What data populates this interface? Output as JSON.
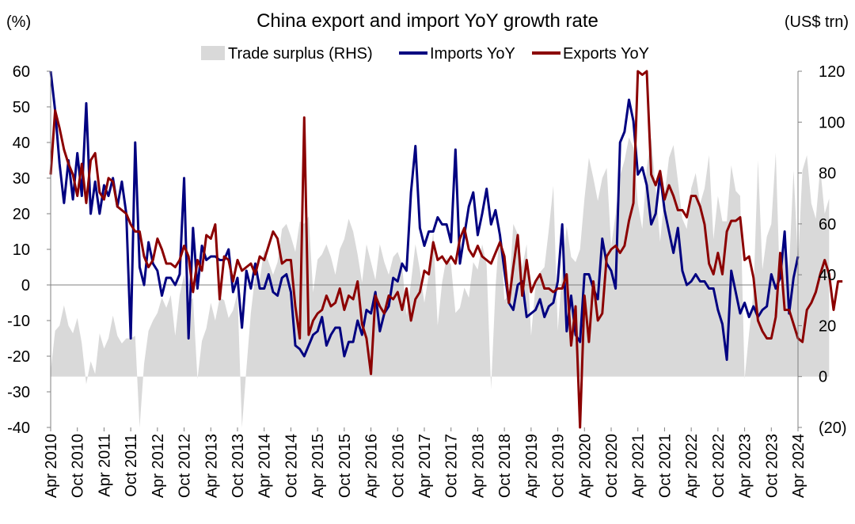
{
  "chart_data": {
    "type": "line",
    "title": "China export and import YoY growth rate",
    "left_axis_unit": "(%)",
    "right_axis_unit": "(US$ trn)",
    "ylim": [
      -40,
      60
    ],
    "y_ticks": [
      "60",
      "50",
      "40",
      "30",
      "20",
      "10",
      "0",
      "-10",
      "-20",
      "-30",
      "-40"
    ],
    "y2lim": [
      -20,
      120
    ],
    "y2_ticks": [
      "120",
      "100",
      "80",
      "60",
      "40",
      "20",
      "0",
      "(20)"
    ],
    "y2_negative_color": "#ff0000",
    "x_range": [
      "2010-04",
      "2024-04"
    ],
    "x_tick_labels": [
      "Apr 2010",
      "Oct 2010",
      "Apr 2011",
      "Oct 2011",
      "Apr 2012",
      "Oct 2012",
      "Apr 2013",
      "Oct 2013",
      "Apr 2014",
      "Oct 2014",
      "Apr 2015",
      "Oct 2015",
      "Apr 2016",
      "Oct 2016",
      "Apr 2017",
      "Oct 2017",
      "Apr 2018",
      "Oct 2018",
      "Apr 2019",
      "Oct 2019",
      "Apr 2020",
      "Oct 2020",
      "Apr 2021",
      "Oct 2021",
      "Apr 2022",
      "Oct 2022",
      "Apr 2023",
      "Oct 2023",
      "Apr 2024"
    ],
    "legend": {
      "placement": "top-center"
    },
    "series": [
      {
        "name": "Trade surplus (RHS)",
        "kind": "area",
        "axis": "right",
        "color": "#d9d9d9",
        "start": "2010-04",
        "values": [
          2,
          18,
          20,
          28,
          20,
          17,
          23,
          13,
          -3,
          6,
          1,
          17,
          11,
          15,
          24,
          16,
          13,
          15,
          15,
          16,
          -30,
          5,
          18,
          22,
          25,
          31,
          27,
          32,
          16,
          32,
          40,
          29,
          31,
          -1,
          14,
          19,
          29,
          22,
          31,
          30,
          23,
          26,
          33,
          -24,
          3,
          25,
          40,
          38,
          50,
          45,
          40,
          45,
          58,
          60,
          55,
          49,
          61,
          60,
          63,
          33,
          46,
          48,
          52,
          47,
          40,
          50,
          54,
          62,
          57,
          48,
          37,
          52,
          45,
          38,
          52,
          45,
          40,
          47,
          49,
          44,
          24,
          37,
          52,
          42,
          29,
          40,
          57,
          20,
          37,
          47,
          44,
          25,
          27,
          35,
          31,
          45,
          42,
          52,
          44,
          -5,
          35,
          60,
          30,
          32,
          60,
          56,
          43,
          52,
          16,
          36,
          41,
          43,
          58,
          75,
          18,
          42,
          59,
          47,
          45,
          50,
          70,
          86,
          78,
          69,
          78,
          82,
          51,
          64,
          79,
          85,
          94,
          90,
          68,
          58,
          82,
          94,
          74,
          53,
          71,
          86,
          91,
          77,
          62,
          58,
          74,
          80,
          68,
          74,
          87,
          54,
          71,
          61,
          61,
          83,
          73,
          71,
          -1,
          17,
          33,
          85,
          42,
          55,
          60,
          88,
          32,
          54,
          43,
          81,
          45,
          81,
          87,
          68,
          62,
          82,
          64,
          70
        ]
      },
      {
        "name": "Imports YoY",
        "kind": "line",
        "axis": "left",
        "color": "#000080",
        "start": "2010-04",
        "values": [
          60,
          49,
          34,
          23,
          35,
          24,
          37,
          25,
          51,
          20,
          29,
          20,
          28,
          25,
          30,
          22,
          29,
          20,
          -15,
          40,
          5,
          0,
          12,
          6,
          4,
          -3,
          2,
          2,
          0,
          3,
          30,
          -15,
          16,
          -1,
          11,
          7,
          8,
          8,
          7,
          7,
          10,
          -2,
          2,
          -12,
          4,
          -1,
          6,
          -1,
          -1,
          3,
          -2,
          -3,
          2,
          3,
          -2,
          -17,
          -18,
          -20,
          -17,
          -14,
          -13,
          -9,
          -17,
          -14,
          -12,
          -12,
          -20,
          -16,
          -16,
          -10,
          -14,
          -7,
          -8,
          -2,
          -13,
          -8,
          -6,
          2,
          1,
          6,
          4,
          26,
          39,
          16,
          11,
          15,
          15,
          19,
          17,
          17,
          12,
          38,
          6,
          14,
          22,
          26,
          14,
          20,
          27,
          17,
          21,
          14,
          4,
          -5,
          -7,
          0,
          1,
          -9,
          -8,
          -7,
          -4,
          -9,
          -6,
          -5,
          1,
          17,
          -13,
          -3,
          -14,
          -16,
          3,
          3,
          -1,
          -4,
          13,
          6,
          4,
          -1,
          40,
          43,
          52,
          46,
          31,
          33,
          28,
          17,
          20,
          31,
          21,
          15,
          9,
          16,
          4,
          0,
          1,
          3,
          1,
          1,
          -1,
          -1,
          -7,
          -11,
          -21,
          4,
          -2,
          -8,
          -5,
          -9,
          -6,
          -9,
          -7,
          -6,
          3,
          -1,
          2,
          15,
          -8,
          2,
          8
        ]
      },
      {
        "name": "Exports YoY",
        "kind": "line",
        "axis": "left",
        "color": "#8b0000",
        "start": "2010-04",
        "values": [
          31,
          49,
          44,
          38,
          34,
          31,
          25,
          34,
          23,
          35,
          37,
          26,
          24,
          30,
          29,
          22,
          21,
          20,
          17,
          15,
          15,
          8,
          5,
          7,
          13,
          10,
          6,
          6,
          5,
          7,
          11,
          8,
          -2,
          7,
          4,
          14,
          13,
          17,
          -4,
          8,
          7,
          1,
          7,
          4,
          5,
          6,
          3,
          8,
          7,
          11,
          15,
          13,
          6,
          7,
          7,
          -6,
          -15,
          47,
          -14,
          -10,
          -8,
          -7,
          -3,
          -6,
          -5,
          -1,
          -7,
          -3,
          -4,
          1,
          -11,
          -15,
          -25,
          -3,
          -6,
          -8,
          -3,
          -4,
          -2,
          -7,
          -1,
          -10,
          -4,
          -2,
          4,
          3,
          12,
          7,
          8,
          6,
          8,
          6,
          13,
          16,
          10,
          8,
          11,
          8,
          7,
          6,
          9,
          12,
          8,
          -5,
          5,
          14,
          -3,
          7,
          -2,
          1,
          3,
          -1,
          -1,
          -2,
          -1,
          -1,
          3,
          -17,
          -6,
          -40,
          -3,
          -16,
          1,
          -10,
          -8,
          8,
          10,
          11,
          9,
          11,
          18,
          23,
          63,
          59,
          63,
          31,
          28,
          32,
          24,
          28,
          25,
          21,
          21,
          19,
          25,
          25,
          22,
          17,
          6,
          3,
          9,
          3,
          15,
          18,
          18,
          19,
          7,
          8,
          2,
          -10,
          -13,
          -15,
          -15,
          -9,
          9,
          -7,
          -7,
          -11,
          -15,
          -16,
          -7,
          -5,
          -2,
          3,
          7,
          3,
          -7,
          1,
          1
        ]
      }
    ]
  }
}
